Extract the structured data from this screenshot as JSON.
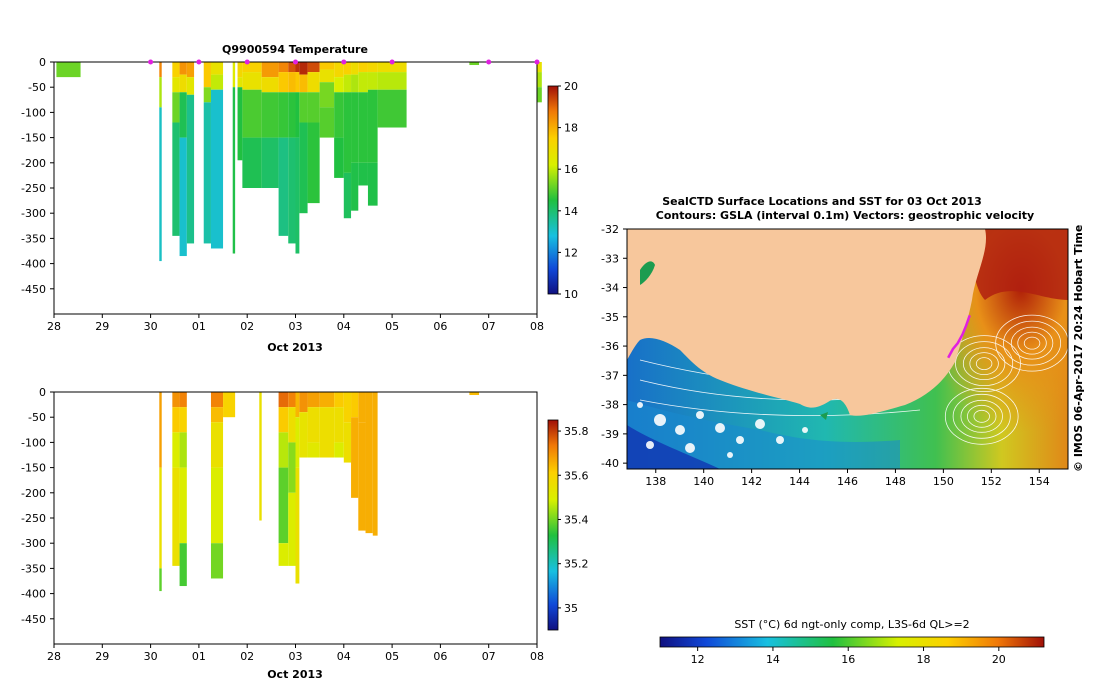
{
  "colors": {
    "land": "#f7c79c",
    "marker": "#e020e0",
    "track": "#e020e0"
  },
  "chart_data": [
    {
      "id": "temperature",
      "type": "heatmap",
      "title": "Q9900594  Temperature",
      "xlabel": "Oct 2013",
      "ylabel": "",
      "x_tick_labels": [
        "28",
        "29",
        "30",
        "01",
        "02",
        "03",
        "04",
        "05",
        "06",
        "07",
        "08"
      ],
      "x_day_range": [
        0,
        10
      ],
      "ylim": [
        -500,
        0
      ],
      "y_ticks": [
        0,
        -50,
        -100,
        -150,
        -200,
        -250,
        -300,
        -350,
        -400,
        -450
      ],
      "colorbar": {
        "min": 10,
        "max": 20,
        "ticks": [
          10,
          12,
          14,
          16,
          18,
          20
        ]
      },
      "profile_marker_days": [
        2,
        3,
        4,
        5,
        6,
        7,
        9,
        10
      ],
      "profiles": [
        {
          "x0": 0.05,
          "x1": 0.55,
          "segments": [
            [
              0,
              -30,
              15.2
            ]
          ]
        },
        {
          "x0": 2.18,
          "x1": 2.23,
          "segments": [
            [
              0,
              -30,
              18.6
            ],
            [
              -30,
              -90,
              15.8
            ],
            [
              -90,
              -395,
              13.1
            ]
          ]
        },
        {
          "x0": 2.45,
          "x1": 2.6,
          "segments": [
            [
              0,
              -30,
              17.4
            ],
            [
              -30,
              -60,
              16.6
            ],
            [
              -60,
              -120,
              15.2
            ],
            [
              -120,
              -345,
              14.0
            ]
          ]
        },
        {
          "x0": 2.6,
          "x1": 2.75,
          "segments": [
            [
              0,
              -25,
              18.4
            ],
            [
              -25,
              -60,
              17.0
            ],
            [
              -60,
              -150,
              14.3
            ],
            [
              -150,
              -385,
              13.0
            ]
          ]
        },
        {
          "x0": 2.75,
          "x1": 2.9,
          "segments": [
            [
              0,
              -30,
              18.2
            ],
            [
              -30,
              -65,
              16.6
            ],
            [
              -65,
              -360,
              13.7
            ]
          ]
        },
        {
          "x0": 3.1,
          "x1": 3.25,
          "segments": [
            [
              0,
              -50,
              17.6
            ],
            [
              -50,
              -80,
              15.4
            ],
            [
              -80,
              -360,
              13.4
            ]
          ]
        },
        {
          "x0": 3.25,
          "x1": 3.5,
          "segments": [
            [
              0,
              -25,
              16.8
            ],
            [
              -25,
              -55,
              16.0
            ],
            [
              -55,
              -370,
              13.0
            ]
          ]
        },
        {
          "x0": 3.7,
          "x1": 3.75,
          "segments": [
            [
              0,
              -50,
              16.4
            ],
            [
              -50,
              -380,
              14.4
            ]
          ]
        },
        {
          "x0": 3.8,
          "x1": 3.9,
          "segments": [
            [
              0,
              -30,
              17.2
            ],
            [
              -30,
              -50,
              16.6
            ],
            [
              -50,
              -195,
              14.5
            ]
          ]
        },
        {
          "x0": 3.9,
          "x1": 4.3,
          "segments": [
            [
              0,
              -20,
              17.4
            ],
            [
              -20,
              -55,
              16.8
            ],
            [
              -55,
              -150,
              14.9
            ],
            [
              -150,
              -250,
              14.3
            ]
          ]
        },
        {
          "x0": 4.3,
          "x1": 4.65,
          "segments": [
            [
              0,
              -30,
              18.3
            ],
            [
              -30,
              -60,
              17.0
            ],
            [
              -60,
              -150,
              14.8
            ],
            [
              -150,
              -250,
              14.1
            ]
          ]
        },
        {
          "x0": 4.65,
          "x1": 4.85,
          "segments": [
            [
              0,
              -20,
              18.6
            ],
            [
              -20,
              -60,
              17.6
            ],
            [
              -60,
              -150,
              14.7
            ],
            [
              -150,
              -345,
              13.8
            ]
          ]
        },
        {
          "x0": 4.85,
          "x1": 5.0,
          "segments": [
            [
              0,
              -20,
              19.2
            ],
            [
              -20,
              -60,
              17.8
            ],
            [
              -60,
              -150,
              14.6
            ],
            [
              -150,
              -360,
              14.0
            ]
          ]
        },
        {
          "x0": 5.0,
          "x1": 5.08,
          "segments": [
            [
              0,
              -20,
              19.6
            ],
            [
              -20,
              -60,
              17.6
            ],
            [
              -60,
              -150,
              14.5
            ],
            [
              -150,
              -380,
              14.1
            ]
          ]
        },
        {
          "x0": 5.08,
          "x1": 5.25,
          "segments": [
            [
              0,
              -25,
              19.7
            ],
            [
              -25,
              -60,
              17.8
            ],
            [
              -60,
              -120,
              15.0
            ],
            [
              -120,
              -300,
              14.3
            ]
          ]
        },
        {
          "x0": 5.25,
          "x1": 5.5,
          "segments": [
            [
              0,
              -20,
              19.3
            ],
            [
              -20,
              -60,
              17.0
            ],
            [
              -60,
              -120,
              15.0
            ],
            [
              -120,
              -280,
              14.6
            ]
          ]
        },
        {
          "x0": 5.5,
          "x1": 5.8,
          "segments": [
            [
              0,
              -15,
              17.6
            ],
            [
              -15,
              -40,
              16.8
            ],
            [
              -40,
              -90,
              15.3
            ],
            [
              -90,
              -150,
              15.0
            ]
          ]
        },
        {
          "x0": 5.8,
          "x1": 6.0,
          "segments": [
            [
              0,
              -30,
              17.2
            ],
            [
              -30,
              -60,
              16.2
            ],
            [
              -60,
              -150,
              14.7
            ],
            [
              -150,
              -230,
              14.5
            ]
          ]
        },
        {
          "x0": 6.0,
          "x1": 6.15,
          "segments": [
            [
              0,
              -25,
              17.4
            ],
            [
              -25,
              -60,
              16.0
            ],
            [
              -60,
              -220,
              14.6
            ],
            [
              -220,
              -310,
              14.2
            ]
          ]
        },
        {
          "x0": 6.15,
          "x1": 6.3,
          "segments": [
            [
              0,
              -25,
              17.0
            ],
            [
              -25,
              -60,
              15.8
            ],
            [
              -60,
              -200,
              14.6
            ],
            [
              -200,
              -295,
              14.4
            ]
          ]
        },
        {
          "x0": 6.3,
          "x1": 6.5,
          "segments": [
            [
              0,
              -20,
              17.4
            ],
            [
              -20,
              -60,
              16.0
            ],
            [
              -60,
              -200,
              14.6
            ],
            [
              -200,
              -245,
              14.4
            ]
          ]
        },
        {
          "x0": 6.5,
          "x1": 6.7,
          "segments": [
            [
              0,
              -20,
              17.2
            ],
            [
              -20,
              -55,
              16.0
            ],
            [
              -55,
              -200,
              14.6
            ],
            [
              -200,
              -285,
              14.4
            ]
          ]
        },
        {
          "x0": 6.7,
          "x1": 7.3,
          "segments": [
            [
              0,
              -20,
              17.0
            ],
            [
              -20,
              -55,
              15.9
            ],
            [
              -55,
              -130,
              14.8
            ]
          ]
        },
        {
          "x0": 8.6,
          "x1": 8.8,
          "segments": [
            [
              0,
              -6,
              15.2
            ]
          ]
        },
        {
          "x0": 10.0,
          "x1": 10.1,
          "segments": [
            [
              0,
              -20,
              16.8
            ],
            [
              -20,
              -50,
              15.8
            ],
            [
              -50,
              -80,
              15.2
            ]
          ]
        }
      ]
    },
    {
      "id": "salinity",
      "type": "heatmap",
      "title": "",
      "xlabel": "Oct 2013",
      "ylabel": "",
      "x_tick_labels": [
        "28",
        "29",
        "30",
        "01",
        "02",
        "03",
        "04",
        "05",
        "06",
        "07",
        "08"
      ],
      "x_day_range": [
        0,
        10
      ],
      "ylim": [
        -500,
        0
      ],
      "y_ticks": [
        0,
        -50,
        -100,
        -150,
        -200,
        -250,
        -300,
        -350,
        -400,
        -450
      ],
      "colorbar": {
        "min": 34.9,
        "max": 35.85,
        "ticks": [
          35,
          35.2,
          35.4,
          35.6,
          35.8
        ]
      },
      "profiles": [
        {
          "x0": 2.18,
          "x1": 2.23,
          "segments": [
            [
              0,
              -150,
              35.68
            ],
            [
              -150,
              -350,
              35.55
            ],
            [
              -350,
              -395,
              35.38
            ]
          ]
        },
        {
          "x0": 2.45,
          "x1": 2.6,
          "segments": [
            [
              0,
              -30,
              35.7
            ],
            [
              -30,
              -80,
              35.62
            ],
            [
              -80,
              -150,
              35.5
            ],
            [
              -150,
              -345,
              35.55
            ]
          ]
        },
        {
          "x0": 2.6,
          "x1": 2.75,
          "segments": [
            [
              0,
              -30,
              35.72
            ],
            [
              -30,
              -80,
              35.6
            ],
            [
              -80,
              -150,
              35.45
            ],
            [
              -150,
              -300,
              35.5
            ],
            [
              -300,
              -385,
              35.36
            ]
          ]
        },
        {
          "x0": 3.25,
          "x1": 3.5,
          "segments": [
            [
              0,
              -30,
              35.72
            ],
            [
              -30,
              -60,
              35.64
            ],
            [
              -60,
              -150,
              35.55
            ],
            [
              -150,
              -300,
              35.5
            ],
            [
              -300,
              -370,
              35.4
            ]
          ]
        },
        {
          "x0": 3.5,
          "x1": 3.75,
          "segments": [
            [
              0,
              -50,
              35.6
            ]
          ]
        },
        {
          "x0": 4.25,
          "x1": 4.3,
          "segments": [
            [
              0,
              -255,
              35.55
            ]
          ]
        },
        {
          "x0": 4.65,
          "x1": 4.85,
          "segments": [
            [
              0,
              -30,
              35.75
            ],
            [
              -30,
              -80,
              35.62
            ],
            [
              -80,
              -150,
              35.46
            ],
            [
              -150,
              -300,
              35.38
            ],
            [
              -300,
              -345,
              35.5
            ]
          ]
        },
        {
          "x0": 4.85,
          "x1": 5.0,
          "segments": [
            [
              0,
              -30,
              35.72
            ],
            [
              -30,
              -100,
              35.56
            ],
            [
              -100,
              -200,
              35.42
            ],
            [
              -200,
              -345,
              35.5
            ]
          ]
        },
        {
          "x0": 5.0,
          "x1": 5.08,
          "segments": [
            [
              0,
              -50,
              35.65
            ],
            [
              -50,
              -150,
              35.5
            ],
            [
              -150,
              -380,
              35.55
            ]
          ]
        },
        {
          "x0": 5.08,
          "x1": 5.25,
          "segments": [
            [
              0,
              -40,
              35.7
            ],
            [
              -40,
              -130,
              35.54
            ]
          ]
        },
        {
          "x0": 5.25,
          "x1": 5.5,
          "segments": [
            [
              0,
              -30,
              35.68
            ],
            [
              -30,
              -100,
              35.56
            ],
            [
              -100,
              -130,
              35.52
            ]
          ]
        },
        {
          "x0": 5.5,
          "x1": 5.8,
          "segments": [
            [
              0,
              -30,
              35.66
            ],
            [
              -30,
              -130,
              35.56
            ]
          ]
        },
        {
          "x0": 5.8,
          "x1": 6.0,
          "segments": [
            [
              0,
              -30,
              35.62
            ],
            [
              -30,
              -100,
              35.56
            ],
            [
              -100,
              -130,
              35.5
            ]
          ]
        },
        {
          "x0": 6.0,
          "x1": 6.15,
          "segments": [
            [
              0,
              -60,
              35.6
            ],
            [
              -60,
              -140,
              35.56
            ]
          ]
        },
        {
          "x0": 6.15,
          "x1": 6.3,
          "segments": [
            [
              0,
              -50,
              35.62
            ],
            [
              -50,
              -210,
              35.66
            ]
          ]
        },
        {
          "x0": 6.3,
          "x1": 6.45,
          "segments": [
            [
              0,
              -60,
              35.66
            ],
            [
              -60,
              -275,
              35.66
            ]
          ]
        },
        {
          "x0": 6.45,
          "x1": 6.6,
          "segments": [
            [
              0,
              -280,
              35.66
            ]
          ]
        },
        {
          "x0": 6.6,
          "x1": 6.7,
          "segments": [
            [
              0,
              -250,
              35.66
            ],
            [
              -250,
              -285,
              35.66
            ]
          ]
        },
        {
          "x0": 8.6,
          "x1": 8.8,
          "segments": [
            [
              0,
              -6,
              35.64
            ]
          ]
        }
      ]
    },
    {
      "id": "sst-map",
      "type": "heatmap",
      "title": "SealCTD Surface Locations and SST for 03 Oct 2013",
      "subtitle": "Contours: GSLA (interval 0.1m) Vectors: geostrophic velocity",
      "x_ticks": [
        138,
        140,
        142,
        144,
        146,
        148,
        150,
        152,
        154
      ],
      "y_ticks": [
        -32,
        -33,
        -34,
        -35,
        -36,
        -37,
        -38,
        -39,
        -40
      ],
      "xlim": [
        136.8,
        155.2
      ],
      "ylim": [
        -40.2,
        -32
      ],
      "colorbar": {
        "label": "SST (°C) 6d ngt-only comp, L3S-6d QL>=2",
        "min": 11,
        "max": 21.2,
        "ticks": [
          12,
          14,
          16,
          18,
          20
        ]
      },
      "seal_track": [
        [
          150.2,
          -36.4
        ],
        [
          150.4,
          -36.1
        ],
        [
          150.6,
          -35.9
        ],
        [
          150.8,
          -35.6
        ],
        [
          150.95,
          -35.3
        ],
        [
          151.1,
          -34.95
        ]
      ],
      "eddies": [
        [
          151.7,
          -36.6
        ],
        [
          153.7,
          -35.9
        ],
        [
          151.6,
          -38.4
        ]
      ]
    }
  ],
  "credit": "©  IMOS 06-Apr-2017 20:24 Hobart Time"
}
